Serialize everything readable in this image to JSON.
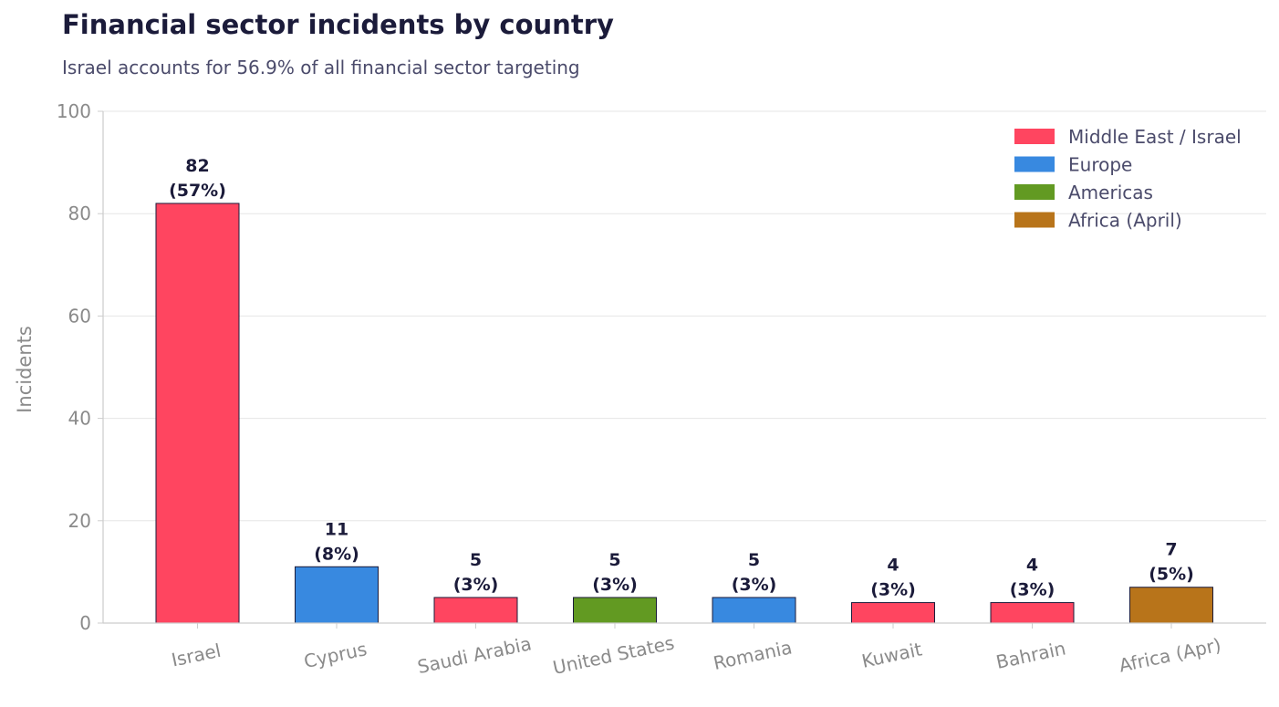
{
  "chart_data": {
    "type": "bar",
    "title": "Financial sector incidents by country",
    "subtitle": "Israel accounts for 56.9% of all financial sector targeting",
    "xlabel": "",
    "ylabel": "Incidents",
    "ylim": [
      0,
      100
    ],
    "yticks": [
      0,
      20,
      40,
      60,
      80,
      100
    ],
    "grid": true,
    "legend_position": "top-right",
    "categories": [
      "Israel",
      "Cyprus",
      "Saudi Arabia",
      "United States",
      "Romania",
      "Kuwait",
      "Bahrain",
      "Africa (Apr)"
    ],
    "values": [
      82,
      11,
      5,
      5,
      5,
      4,
      4,
      7
    ],
    "value_labels": [
      "82",
      "11",
      "5",
      "5",
      "5",
      "4",
      "4",
      "7"
    ],
    "percent_labels": [
      "(57%)",
      "(8%)",
      "(3%)",
      "(3%)",
      "(3%)",
      "(3%)",
      "(3%)",
      "(5%)"
    ],
    "regions": [
      "Middle East / Israel",
      "Europe",
      "Middle East / Israel",
      "Americas",
      "Europe",
      "Middle East / Israel",
      "Middle East / Israel",
      "Africa (April)"
    ],
    "legend": [
      {
        "name": "Middle East / Israel",
        "color": "#ff4560"
      },
      {
        "name": "Europe",
        "color": "#3889e0"
      },
      {
        "name": "Americas",
        "color": "#629a22"
      },
      {
        "name": "Africa (April)",
        "color": "#b8741a"
      }
    ]
  }
}
